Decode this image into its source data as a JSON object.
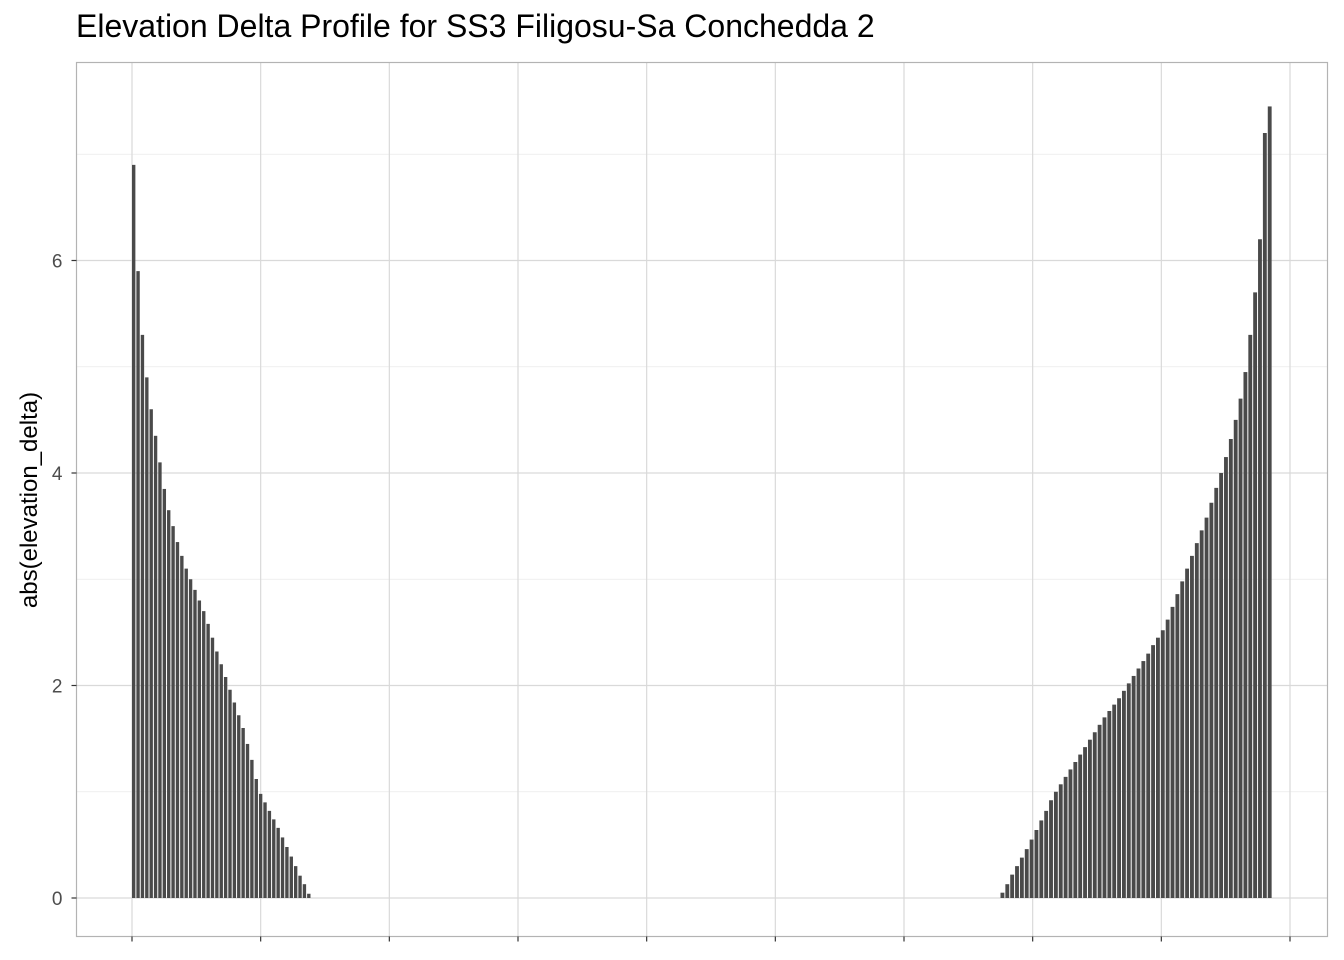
{
  "chart_data": {
    "type": "bar",
    "title": "Elevation Delta Profile for SS3 Filigosu-Sa Conchedda 2",
    "xlabel": "",
    "ylabel": "abs(elevation_delta)",
    "y_ticks": [
      "0",
      "2",
      "4",
      "6"
    ],
    "ylim": [
      -0.36,
      7.9
    ],
    "x_range": [
      0,
      1000
    ],
    "grid": true,
    "bar_color": "#4a4a4a",
    "series": [
      {
        "x_start": 0,
        "x_end": 155,
        "values": [
          6.9,
          5.9,
          5.3,
          4.9,
          4.6,
          4.35,
          4.1,
          3.85,
          3.65,
          3.5,
          3.35,
          3.22,
          3.1,
          3.0,
          2.9,
          2.8,
          2.7,
          2.58,
          2.45,
          2.32,
          2.2,
          2.08,
          1.96,
          1.84,
          1.72,
          1.6,
          1.45,
          1.3,
          1.12,
          0.98,
          0.9,
          0.82,
          0.74,
          0.66,
          0.57,
          0.48,
          0.39,
          0.3,
          0.21,
          0.13,
          0.04
        ]
      },
      {
        "x_start": 750,
        "x_end": 985,
        "values": [
          0.05,
          0.13,
          0.22,
          0.3,
          0.38,
          0.46,
          0.55,
          0.64,
          0.73,
          0.82,
          0.92,
          1.0,
          1.07,
          1.14,
          1.21,
          1.28,
          1.35,
          1.42,
          1.49,
          1.56,
          1.63,
          1.7,
          1.76,
          1.82,
          1.88,
          1.95,
          2.02,
          2.09,
          2.16,
          2.23,
          2.3,
          2.38,
          2.45,
          2.52,
          2.62,
          2.74,
          2.86,
          2.98,
          3.1,
          3.22,
          3.34,
          3.46,
          3.58,
          3.72,
          3.86,
          4.0,
          4.15,
          4.32,
          4.5,
          4.7,
          4.95,
          5.3,
          5.7,
          6.2,
          7.2,
          7.45
        ]
      }
    ]
  }
}
